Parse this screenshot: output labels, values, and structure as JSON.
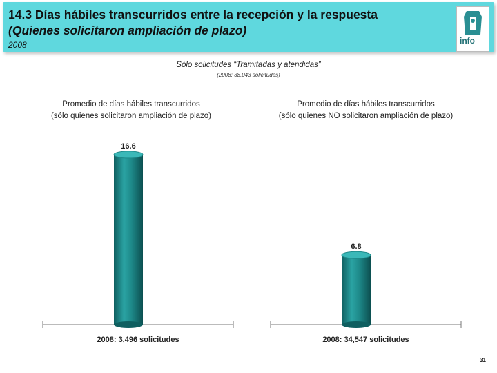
{
  "header": {
    "title": "14.3 Días hábiles transcurridos entre la recepción y la respuesta",
    "subtitle": "(Quienes solicitaron ampliación de plazo)",
    "year": "2008",
    "logo_text": "info",
    "bg_color": "#5fd8de"
  },
  "filter": {
    "title": "Sólo solicitudes “Tramitadas y atendidas”",
    "subtitle": "(2008: 38,043 solicitudes)"
  },
  "chart_data": [
    {
      "type": "bar",
      "title_line1": "Promedio de días hábiles transcurridos",
      "title_line2": "(sólo quienes solicitaron ampliación de plazo)",
      "categories": [
        "2008: 3,496 solicitudes"
      ],
      "values": [
        16.6
      ],
      "data_labels": [
        "16.6"
      ],
      "ylim": [
        0,
        17
      ],
      "color": "#1e8a8a"
    },
    {
      "type": "bar",
      "title_line1": "Promedio de días hábiles transcurridos",
      "title_line2": "(sólo quienes NO solicitaron ampliación de plazo)",
      "categories": [
        "2008: 34,547 solicitudes"
      ],
      "values": [
        6.8
      ],
      "data_labels": [
        "6.8"
      ],
      "ylim": [
        0,
        17
      ],
      "color": "#1e8a8a"
    }
  ],
  "page_number": "31"
}
